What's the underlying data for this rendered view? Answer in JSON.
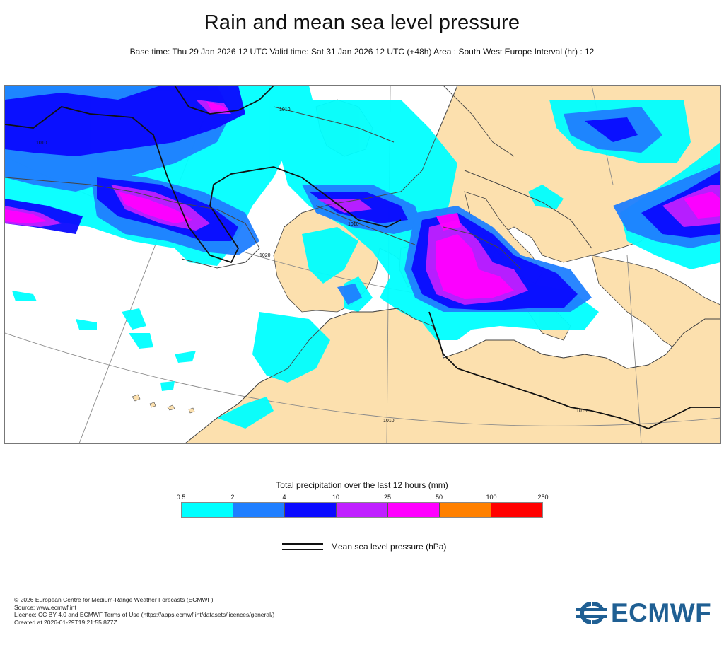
{
  "header": {
    "title": "Rain and mean sea level pressure",
    "subtitle": "Base time: Thu 29 Jan 2026 12 UTC Valid time: Sat 31 Jan 2026 12 UTC (+48h) Area : South West Europe Interval (hr) : 12"
  },
  "map": {
    "isobar_labels": [
      "1010",
      "1010",
      "1010",
      "1020",
      "1010",
      "1010"
    ],
    "colors": {
      "land": "#fce0ae",
      "sea": "#ffffff",
      "coast": "#444444",
      "isobar": "#111111",
      "graticule": "#8a8a8a"
    }
  },
  "legend": {
    "title": "Total precipitation over the last 12 hours (mm)",
    "ticks": [
      "0.5",
      "2",
      "4",
      "10",
      "25",
      "50",
      "100",
      "250"
    ],
    "colors": [
      "#00ffff",
      "#1f7fff",
      "#0a0aff",
      "#c020ff",
      "#ff00ff",
      "#ff8000",
      "#ff0000"
    ],
    "pressure_label": "Mean sea level pressure (hPa)"
  },
  "footer": {
    "lines": [
      "© 2026 European Centre for Medium-Range Weather Forecasts (ECMWF)",
      "Source: www.ecmwf.int",
      "Licence: CC BY 4.0 and ECMWF Terms of Use (https://apps.ecmwf.int/datasets/licences/general/)",
      "Created at 2026-01-29T19:21:55.877Z"
    ],
    "logo_text": "ECMWF"
  }
}
